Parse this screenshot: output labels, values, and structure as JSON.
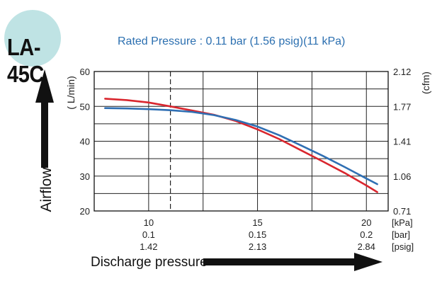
{
  "model": "LA-45C",
  "chart_data": {
    "type": "line",
    "subtitle": "Rated Pressure : 0.11 bar (1.56 psig)(11 kPa)",
    "ylabel": "Airflow",
    "ylabel_unit": "( L/min)",
    "y2label": "(cfm)",
    "xlabel": "Discharge pressure",
    "ylim": [
      20,
      60
    ],
    "y_ticks": [
      "60",
      "50",
      "40",
      "30",
      "20"
    ],
    "y2_ticks": [
      "2.12",
      "1.77",
      "1.41",
      "1.06",
      "0.71"
    ],
    "xlim": [
      7.5,
      21
    ],
    "x_tick_values": [
      10,
      15,
      20
    ],
    "x_rows": [
      {
        "labels": [
          "10",
          "15",
          "20"
        ],
        "unit": "[kPa]"
      },
      {
        "labels": [
          "0.1",
          "0.15",
          "0.2"
        ],
        "unit": "[bar]"
      },
      {
        "labels": [
          "1.42",
          "2.13",
          "2.84"
        ],
        "unit": "[psig]"
      }
    ],
    "rated_x": 11,
    "grid": true,
    "series": [
      {
        "color": "#d9262e",
        "x": [
          8,
          9,
          10,
          11,
          12,
          13,
          14,
          15,
          16,
          17,
          18,
          19,
          20,
          20.5
        ],
        "y": [
          52.2,
          51.8,
          51.1,
          50.0,
          48.8,
          47.6,
          45.8,
          43.4,
          40.6,
          37.4,
          34.2,
          30.9,
          27.3,
          25.4
        ]
      },
      {
        "color": "#2f6fb3",
        "x": [
          8,
          9,
          10,
          11,
          12,
          13,
          14,
          15,
          16,
          17,
          18,
          19,
          20,
          20.5
        ],
        "y": [
          49.5,
          49.4,
          49.2,
          48.9,
          48.4,
          47.5,
          46.1,
          44.2,
          41.7,
          38.8,
          35.8,
          32.6,
          29.3,
          27.7
        ]
      }
    ]
  }
}
